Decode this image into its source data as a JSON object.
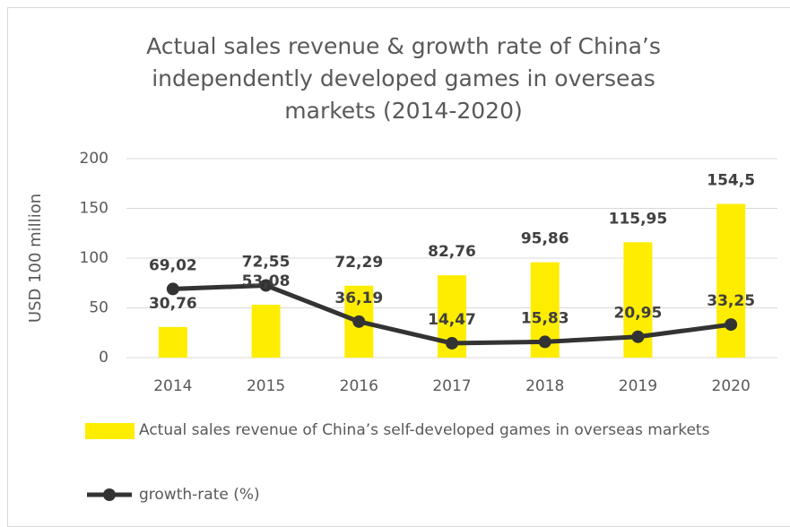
{
  "chart_data": {
    "type": "bar",
    "title": "Actual sales revenue & growth rate of China’s independently developed games in overseas markets (2014-2020)",
    "y_label": "USD 100 million",
    "categories": [
      "2014",
      "2015",
      "2016",
      "2017",
      "2018",
      "2019",
      "2020"
    ],
    "series": [
      {
        "name": "Actual sales revenue of China’s self-developed games in overseas markets",
        "type": "bar",
        "color": "#ffed00",
        "values": [
          30.76,
          53.08,
          72.29,
          82.76,
          95.86,
          115.95,
          154.5
        ],
        "value_labels": [
          "30,76",
          "53,08",
          "72,29",
          "82,76",
          "95,86",
          "115,95",
          "154,5"
        ]
      },
      {
        "name": "growth-rate (%)",
        "type": "line",
        "color": "#333333",
        "values": [
          69.02,
          72.55,
          36.19,
          14.47,
          15.83,
          20.95,
          33.25
        ],
        "value_labels": [
          "69,02",
          "72,55",
          "36,19",
          "14,47",
          "15,83",
          "20,95",
          "33,25"
        ]
      }
    ],
    "ylim": [
      0,
      200
    ],
    "yticks": [
      0,
      50,
      100,
      150,
      200
    ],
    "grid": true
  }
}
